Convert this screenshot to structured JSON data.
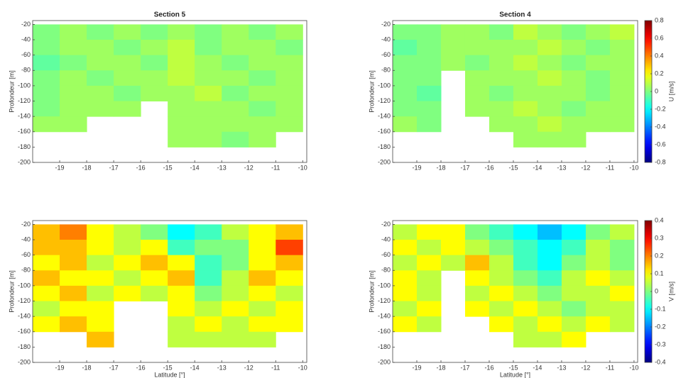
{
  "chart_data": [
    {
      "type": "heatmap",
      "title": "Section 5",
      "ylabel": "Profondeur [m]",
      "x": [
        -19.5,
        -18.5,
        -17.5,
        -16.5,
        -15.5,
        -14.5,
        -13.5,
        -12.5,
        -11.5,
        -10.5
      ],
      "y": [
        -30,
        -50,
        -70,
        -90,
        -110,
        -130,
        -150,
        -170
      ],
      "z": [
        [
          0,
          0.05,
          0,
          0.05,
          0,
          0.05,
          0,
          0.05,
          0,
          0.05
        ],
        [
          0,
          0.05,
          0.05,
          0,
          0.05,
          0.1,
          0,
          0.05,
          0.05,
          0
        ],
        [
          -0.05,
          0,
          0.05,
          0.05,
          0,
          0.1,
          0.05,
          0,
          0.05,
          0.05
        ],
        [
          0,
          0.05,
          0,
          0.05,
          0.05,
          0.1,
          0.05,
          0.05,
          0,
          0.05
        ],
        [
          0,
          0.05,
          0.05,
          0,
          0.05,
          0.05,
          0.1,
          0,
          0.05,
          0.05
        ],
        [
          0,
          0.05,
          0.05,
          0.05,
          null,
          0.05,
          0.05,
          0.05,
          0,
          0.05
        ],
        [
          0.05,
          0.05,
          null,
          null,
          null,
          0.05,
          0.05,
          0.05,
          0.05,
          0.05
        ],
        [
          null,
          null,
          null,
          null,
          null,
          0.05,
          0.05,
          0,
          0.05,
          null
        ]
      ],
      "colormap": "jet",
      "clim": [
        -0.8,
        0.8
      ],
      "xlim": [
        -20,
        -9.85
      ],
      "ylim": [
        -200,
        -15
      ],
      "xticks": [
        -19,
        -18,
        -17,
        -16,
        -15,
        -14,
        -13,
        -12,
        -11,
        -10
      ],
      "yticks": [
        -20,
        -40,
        -60,
        -80,
        -100,
        -120,
        -140,
        -160,
        -180,
        -200
      ]
    },
    {
      "type": "heatmap",
      "title": "Section 4",
      "ylabel": "Profondeur [m]",
      "x": [
        -19.5,
        -18.5,
        -17.5,
        -16.5,
        -15.5,
        -14.5,
        -13.5,
        -12.5,
        -11.5,
        -10.5
      ],
      "y": [
        -30,
        -50,
        -70,
        -90,
        -110,
        -130,
        -150,
        -170
      ],
      "z": [
        [
          0,
          0,
          0.05,
          0.05,
          0,
          0.1,
          0.05,
          0,
          0.05,
          0.1
        ],
        [
          -0.05,
          0,
          0.05,
          0.05,
          0.05,
          0.05,
          0.1,
          0.05,
          0,
          0.05
        ],
        [
          0,
          0,
          0.05,
          0,
          0.05,
          0.1,
          0.05,
          0,
          0.05,
          0.05
        ],
        [
          0,
          0,
          null,
          0.05,
          0.05,
          0.05,
          0.1,
          0.05,
          0,
          0.05
        ],
        [
          0,
          -0.05,
          null,
          0.05,
          0,
          0.05,
          0.05,
          0.05,
          0,
          0.05
        ],
        [
          0,
          0,
          null,
          0.05,
          0.05,
          0.1,
          0.05,
          0,
          0.05,
          0.05
        ],
        [
          0.05,
          0,
          null,
          null,
          0.05,
          0.05,
          0.1,
          0.05,
          0.05,
          0.05
        ],
        [
          null,
          null,
          null,
          null,
          null,
          0.05,
          0.05,
          0.05,
          null,
          null
        ]
      ],
      "colormap": "jet",
      "clim": [
        -0.8,
        0.8
      ],
      "colorbar": {
        "label": "U [m/s]",
        "ticks": [
          0.8,
          0.6,
          0.4,
          0.2,
          0,
          -0.2,
          -0.4,
          -0.6,
          -0.8
        ]
      },
      "xlim": [
        -20,
        -9.85
      ],
      "ylim": [
        -200,
        -15
      ],
      "xticks": [
        -19,
        -18,
        -17,
        -16,
        -15,
        -14,
        -13,
        -12,
        -11,
        -10
      ],
      "yticks": [
        -20,
        -40,
        -60,
        -80,
        -100,
        -120,
        -140,
        -160,
        -180,
        -200
      ]
    },
    {
      "type": "heatmap",
      "xlabel": "Latitude [°]",
      "ylabel": "Profondeur [m]",
      "x": [
        -19.5,
        -18.5,
        -17.5,
        -16.5,
        -15.5,
        -14.5,
        -13.5,
        -12.5,
        -11.5,
        -10.5
      ],
      "y": [
        -30,
        -50,
        -70,
        -90,
        -110,
        -130,
        -150,
        -170
      ],
      "z": [
        [
          0.15,
          0.2,
          0.1,
          0.05,
          0,
          -0.1,
          -0.05,
          0.05,
          0.1,
          0.15
        ],
        [
          0.15,
          0.15,
          0.1,
          0.05,
          0.1,
          -0.05,
          0,
          0,
          0.1,
          0.25
        ],
        [
          0.1,
          0.15,
          0.05,
          0.1,
          0.15,
          0.1,
          -0.05,
          0,
          0.1,
          0.15
        ],
        [
          0.15,
          0.1,
          0.1,
          0.05,
          0.1,
          0.15,
          -0.05,
          0.05,
          0.15,
          0.1
        ],
        [
          0.1,
          0.15,
          0.05,
          0.1,
          0.05,
          0.1,
          0,
          0.05,
          0.1,
          0.05
        ],
        [
          0.05,
          0.1,
          0.1,
          null,
          null,
          0.1,
          0.05,
          0.1,
          0.05,
          0.1
        ],
        [
          0.1,
          0.15,
          0.1,
          null,
          null,
          0.05,
          0.1,
          0.05,
          0.1,
          0.1
        ],
        [
          null,
          null,
          0.15,
          null,
          null,
          0.05,
          0.05,
          0.05,
          0.05,
          null
        ]
      ],
      "colormap": "jet",
      "clim": [
        -0.4,
        0.4
      ],
      "xlim": [
        -20,
        -9.85
      ],
      "ylim": [
        -200,
        -15
      ],
      "xticks": [
        -19,
        -18,
        -17,
        -16,
        -15,
        -14,
        -13,
        -12,
        -11,
        -10
      ],
      "yticks": [
        -20,
        -40,
        -60,
        -80,
        -100,
        -120,
        -140,
        -160,
        -180,
        -200
      ]
    },
    {
      "type": "heatmap",
      "xlabel": "Latitude [°]",
      "ylabel": "Profondeur [m]",
      "x": [
        -19.5,
        -18.5,
        -17.5,
        -16.5,
        -15.5,
        -14.5,
        -13.5,
        -12.5,
        -11.5,
        -10.5
      ],
      "y": [
        -30,
        -50,
        -70,
        -90,
        -110,
        -130,
        -150,
        -170
      ],
      "z": [
        [
          0.05,
          0.1,
          0.1,
          0,
          -0.05,
          -0.1,
          -0.15,
          -0.1,
          0,
          0.05
        ],
        [
          0.1,
          0.05,
          0.1,
          0.05,
          0,
          -0.05,
          -0.1,
          -0.05,
          0.05,
          0
        ],
        [
          0.05,
          0.1,
          0.05,
          0.15,
          0.05,
          -0.05,
          -0.1,
          0,
          0.05,
          0
        ],
        [
          0.1,
          0.05,
          null,
          0.1,
          0.05,
          0,
          -0.05,
          0.05,
          0.1,
          0.05
        ],
        [
          0.1,
          0.05,
          null,
          0.05,
          0.1,
          0.05,
          0,
          0.05,
          0.05,
          0.1
        ],
        [
          0.05,
          0.1,
          null,
          0.1,
          0.05,
          0.1,
          0.05,
          0,
          0.05,
          0.05
        ],
        [
          0.1,
          0.05,
          null,
          null,
          0.1,
          0.05,
          0.1,
          0.05,
          0.1,
          0.05
        ],
        [
          null,
          null,
          null,
          null,
          null,
          0.05,
          0.05,
          0.1,
          null,
          null
        ]
      ],
      "colormap": "jet",
      "clim": [
        -0.4,
        0.4
      ],
      "colorbar": {
        "label": "V [m/s]",
        "ticks": [
          0.4,
          0.3,
          0.2,
          0.1,
          0,
          -0.1,
          -0.2,
          -0.3,
          -0.4
        ]
      },
      "xlim": [
        -20,
        -9.85
      ],
      "ylim": [
        -200,
        -15
      ],
      "xticks": [
        -19,
        -18,
        -17,
        -16,
        -15,
        -14,
        -13,
        -12,
        -11,
        -10
      ],
      "yticks": [
        -20,
        -40,
        -60,
        -80,
        -100,
        -120,
        -140,
        -160,
        -180,
        -200
      ]
    }
  ]
}
